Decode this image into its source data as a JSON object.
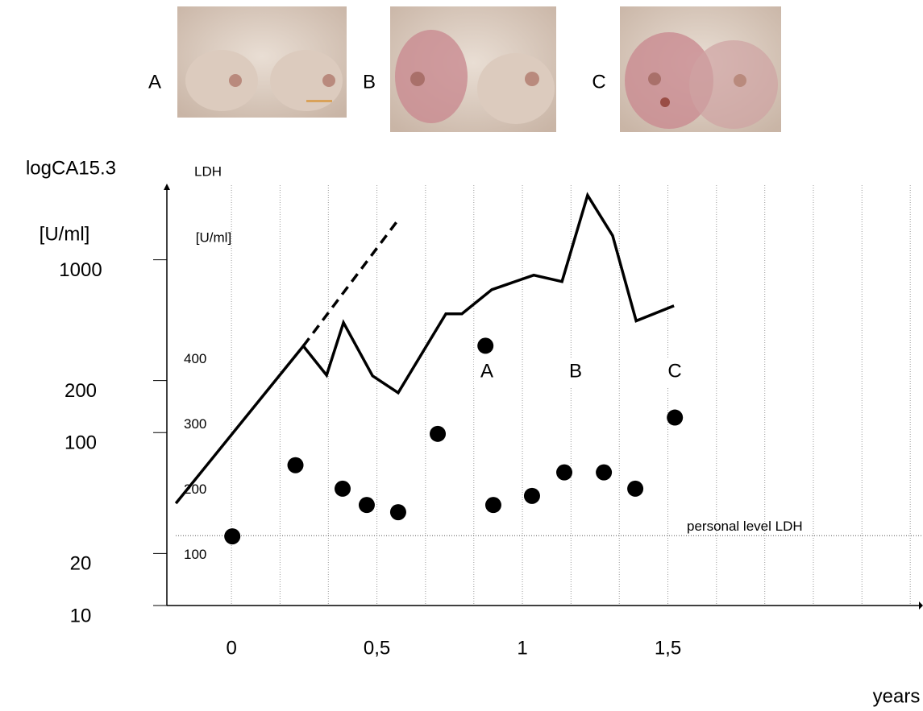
{
  "chart_data": {
    "type": "line",
    "photos": [
      "A",
      "B",
      "C"
    ],
    "ylabel": [
      "logCA15.3",
      "[U/ml]"
    ],
    "y2label": [
      "LDH",
      "[U/ml]"
    ],
    "xlabel": "years",
    "log_y": true,
    "xlim": [
      -0.222,
      2.363
    ],
    "xticks": [
      {
        "value": 0,
        "label": "0"
      },
      {
        "value": 0.5,
        "label": "0,5"
      },
      {
        "value": 1,
        "label": "1"
      },
      {
        "value": 1.5,
        "label": "1,5"
      }
    ],
    "xgrid": [
      0,
      0.167,
      0.333,
      0.5,
      0.667,
      0.833,
      1,
      1.167,
      1.333,
      1.5,
      1.667,
      1.833,
      2,
      2.167,
      2.333
    ],
    "ylim": [
      10,
      2700
    ],
    "yticks": [
      10,
      20,
      100,
      200,
      1000
    ],
    "y2lim": [
      23,
      667
    ],
    "y2ticks": [
      100,
      200,
      300,
      400
    ],
    "series": [
      {
        "type": "line",
        "axis": "y",
        "color": "#000000",
        "x": [
          -0.191,
          0.247,
          0.327,
          0.385,
          0.485,
          0.573,
          0.737,
          0.792,
          0.895,
          1.039,
          1.136,
          1.224,
          1.31,
          1.391,
          1.521
        ],
        "values": [
          39,
          317,
          215,
          433,
          213,
          170,
          487,
          487,
          672,
          815,
          748,
          2360,
          1380,
          443,
          542
        ]
      },
      {
        "type": "line",
        "style": "dashed",
        "axis": "y",
        "color": "#000000",
        "x": [
          0.247,
          0.576
        ],
        "values": [
          317,
          1728
        ]
      },
      {
        "type": "scatter",
        "axis": "y2",
        "color": "#000000",
        "x": [
          0.003,
          0.22,
          0.382,
          0.465,
          0.573,
          0.709,
          0.873,
          0.9,
          1.033,
          1.144,
          1.28,
          1.388,
          1.524
        ],
        "values": [
          129,
          238,
          202,
          177,
          166,
          286,
          421,
          177,
          191,
          227,
          227,
          202,
          311
        ]
      }
    ],
    "annotations": [
      "A",
      "B",
      "C"
    ],
    "reference_line": {
      "axis": "y2",
      "value": 130,
      "label": "personal level LDH"
    }
  }
}
